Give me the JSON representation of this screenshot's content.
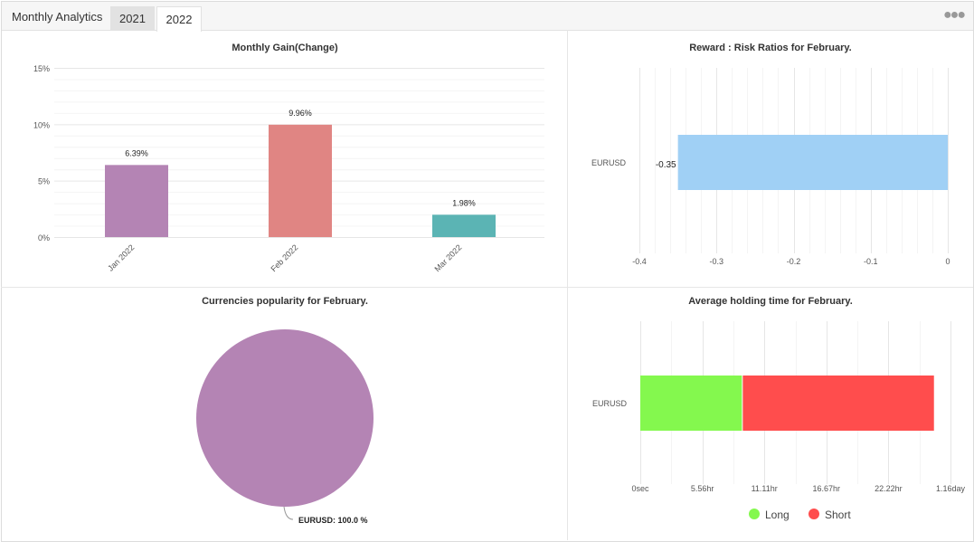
{
  "header": {
    "title": "Monthly Analytics",
    "tabs": [
      {
        "label": "2021",
        "active": false
      },
      {
        "label": "2022",
        "active": true
      }
    ],
    "more_icon": "ellipsis-icon"
  },
  "chart_data": [
    {
      "type": "bar",
      "title": "Monthly Gain(Change)",
      "categories": [
        "Jan 2022",
        "Feb 2022",
        "Mar 2022"
      ],
      "values": [
        6.39,
        9.96,
        1.98
      ],
      "data_labels": [
        "6.39%",
        "9.96%",
        "1.98%"
      ],
      "colors": [
        "#b484b4",
        "#e08583",
        "#5bb4b4"
      ],
      "ylim": [
        0,
        15
      ],
      "yticks": [
        "0%",
        "5%",
        "10%",
        "15%"
      ],
      "grid": true
    },
    {
      "type": "bar",
      "orientation": "horizontal",
      "title": "Reward : Risk Ratios for February.",
      "categories": [
        "EURUSD"
      ],
      "values": [
        -0.35
      ],
      "data_labels": [
        "-0.35"
      ],
      "color": "#a0d0f5",
      "xlim": [
        -0.4,
        0
      ],
      "xticks": [
        "-0.4",
        "-0.3",
        "-0.2",
        "-0.1",
        "0"
      ],
      "grid": true
    },
    {
      "type": "pie",
      "title": "Currencies popularity for February.",
      "slices": [
        {
          "label": "EURUSD",
          "value": 100.0,
          "display": "EURUSD: 100.0 %",
          "color": "#b484b4"
        }
      ]
    },
    {
      "type": "bar",
      "orientation": "horizontal",
      "stacked": true,
      "title": "Average holding time for February.",
      "categories": [
        "EURUSD"
      ],
      "series": [
        {
          "name": "Long",
          "values": [
            9.1
          ],
          "unit": "hr",
          "color": "#84f84e"
        },
        {
          "name": "Short",
          "values": [
            17.2
          ],
          "unit": "hr",
          "color": "#ff4d4d"
        }
      ],
      "xlim": [
        0,
        27.78
      ],
      "xticks": [
        "0sec",
        "5.56hr",
        "11.11hr",
        "16.67hr",
        "22.22hr",
        "1.16day"
      ],
      "legend": "bottom",
      "grid": true
    }
  ]
}
